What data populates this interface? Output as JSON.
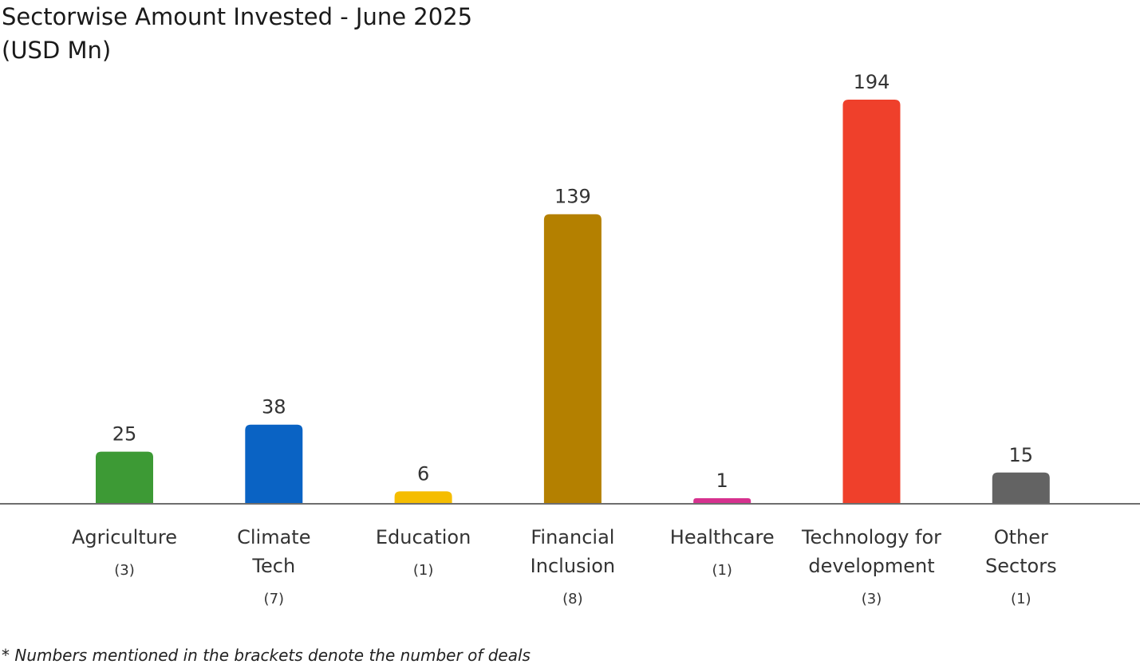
{
  "chart_data": {
    "type": "bar",
    "title": "Sectorwise Amount Invested - June 2025",
    "subtitle": "(USD Mn)",
    "categories": [
      [
        "Agriculture"
      ],
      [
        "Climate",
        "Tech"
      ],
      [
        "Education"
      ],
      [
        "Financial",
        "Inclusion"
      ],
      [
        "Healthcare"
      ],
      [
        "Technology for",
        "development"
      ],
      [
        "Other",
        "Sectors"
      ]
    ],
    "deal_counts": [
      "(3)",
      "(7)",
      "(1)",
      "(8)",
      "(1)",
      "(3)",
      "(1)"
    ],
    "values": [
      25,
      38,
      6,
      139,
      1,
      194,
      15
    ],
    "colors": [
      "#3d9a35",
      "#0a63c4",
      "#f5bd00",
      "#b48000",
      "#d6318e",
      "#ef402b",
      "#636363"
    ],
    "axis_color": "#6e6e6e",
    "xlabel": "",
    "ylabel": "",
    "ylim": [
      0,
      194
    ],
    "grid": false,
    "legend": "none"
  },
  "footnote": "* Numbers mentioned in the brackets denote the number of deals"
}
